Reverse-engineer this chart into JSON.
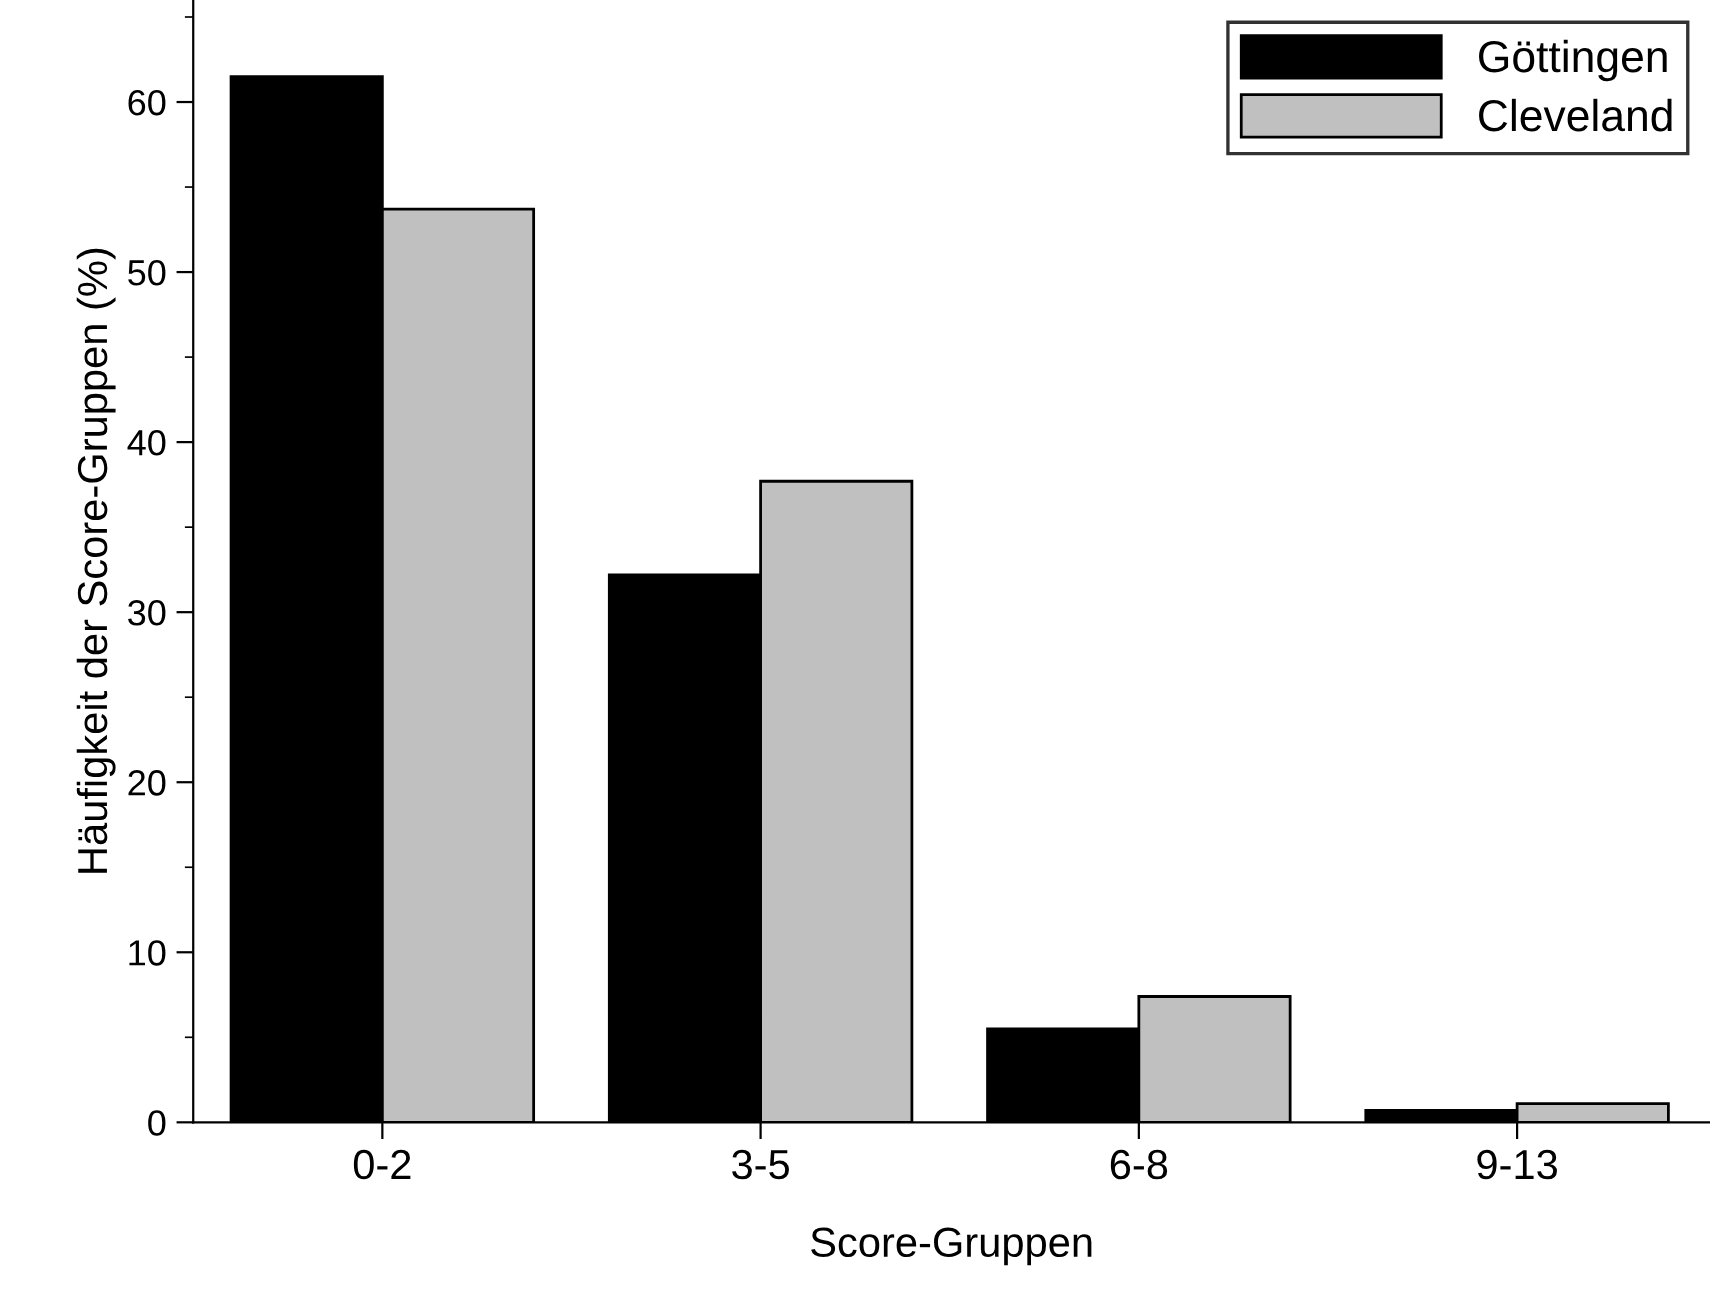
{
  "chart_data": {
    "type": "bar",
    "xlabel": "Score-Gruppen",
    "ylabel": "Häufigkeit der Score-Gruppen (%)",
    "categories": [
      "0-2",
      "3-5",
      "6-8",
      "9-13"
    ],
    "series": [
      {
        "name": "Göttingen",
        "color": "#000000",
        "values": [
          61.5,
          32.2,
          5.5,
          0.7
        ]
      },
      {
        "name": "Cleveland",
        "color": "#c0c0c0",
        "values": [
          53.7,
          37.7,
          7.4,
          1.1
        ]
      }
    ],
    "ylim": [
      0,
      66
    ],
    "yticks": [
      0,
      {
        "value": 5,
        "label": null
      },
      10,
      {
        "value": 15,
        "label": null
      },
      20,
      {
        "value": 25,
        "label": null
      },
      30,
      {
        "value": 35,
        "label": null
      },
      40,
      {
        "value": 45,
        "label": null
      },
      50,
      {
        "value": 55,
        "label": null
      },
      60,
      {
        "value": 65,
        "label": null
      }
    ],
    "grid": false,
    "legend": "top right"
  }
}
